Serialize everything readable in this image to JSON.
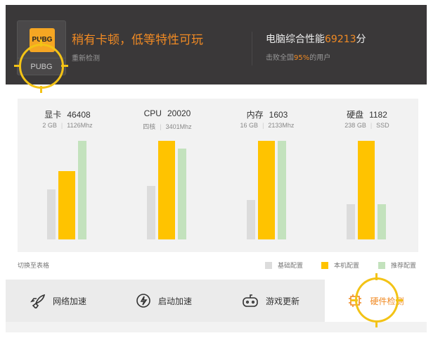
{
  "header": {
    "game_logo_text": "PUBG",
    "game_name": "PUBG",
    "status": "稍有卡顿，低等特性可玩",
    "recheck": "重新检测",
    "score_prefix": "电脑综合性能",
    "score": "69213",
    "score_suffix": "分",
    "beat_prefix": "击败全国",
    "beat_percent": "95%",
    "beat_suffix": "的用户"
  },
  "colors": {
    "accent": "#f08a24",
    "base": "#dcdcdc",
    "local": "#ffc300",
    "recommended": "#c3e2bd",
    "highlight": "#f3c316"
  },
  "hardware": [
    {
      "name": "显卡",
      "score": "46408",
      "spec1": "2 GB",
      "spec2": "1126Mhz",
      "bars_pct": {
        "base": 51,
        "local": 69,
        "recommended": 100
      }
    },
    {
      "name": "CPU",
      "score": "20020",
      "spec1": "四核",
      "spec2": "3401Mhz",
      "bars_pct": {
        "base": 54,
        "local": 100,
        "recommended": 92
      }
    },
    {
      "name": "内存",
      "score": "1603",
      "spec1": "16 GB",
      "spec2": "2133Mhz",
      "bars_pct": {
        "base": 40,
        "local": 100,
        "recommended": 100
      }
    },
    {
      "name": "硬盘",
      "score": "1182",
      "spec1": "238 GB",
      "spec2": "SSD",
      "bars_pct": {
        "base": 36,
        "local": 100,
        "recommended": 36
      }
    }
  ],
  "switch_to_table": "切换至表格",
  "legend": {
    "base": "基础配置",
    "local": "本机配置",
    "recommended": "推荐配置"
  },
  "tabs": [
    {
      "label": "网络加速",
      "icon": "rocket-icon"
    },
    {
      "label": "启动加速",
      "icon": "lightning-icon"
    },
    {
      "label": "游戏更新",
      "icon": "gamepad-icon"
    },
    {
      "label": "硬件检测",
      "icon": "chip-icon",
      "active": true
    }
  ]
}
